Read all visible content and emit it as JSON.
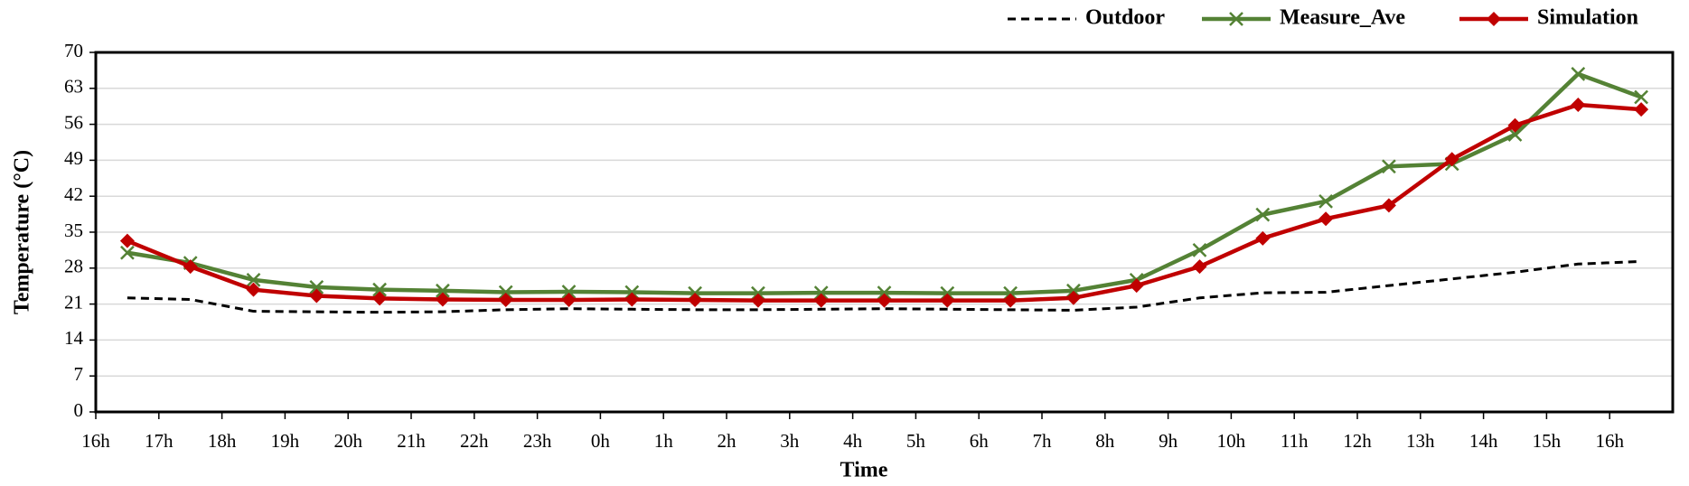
{
  "chart_data": {
    "type": "line",
    "xlabel": "Time",
    "ylabel": "Temperature (°C)",
    "x": [
      0.5,
      1.5,
      2.5,
      3.5,
      4.5,
      5.5,
      6.5,
      7.5,
      8.5,
      9.5,
      10.5,
      11.5,
      12.5,
      13.5,
      14.5,
      15.5,
      16.5,
      17.5,
      18.5,
      19.5,
      20.5,
      21.5,
      22.5,
      23.5,
      24.5
    ],
    "xlim": [
      0,
      25
    ],
    "xticks": [
      {
        "value": 0,
        "label": "16h"
      },
      {
        "value": 1,
        "label": "17h"
      },
      {
        "value": 2,
        "label": "18h"
      },
      {
        "value": 3,
        "label": "19h"
      },
      {
        "value": 4,
        "label": "20h"
      },
      {
        "value": 5,
        "label": "21h"
      },
      {
        "value": 6,
        "label": "22h"
      },
      {
        "value": 7,
        "label": "23h"
      },
      {
        "value": 8,
        "label": "0h"
      },
      {
        "value": 9,
        "label": "1h"
      },
      {
        "value": 10,
        "label": "2h"
      },
      {
        "value": 11,
        "label": "3h"
      },
      {
        "value": 12,
        "label": "4h"
      },
      {
        "value": 13,
        "label": "5h"
      },
      {
        "value": 14,
        "label": "6h"
      },
      {
        "value": 15,
        "label": "7h"
      },
      {
        "value": 16,
        "label": "8h"
      },
      {
        "value": 17,
        "label": "9h"
      },
      {
        "value": 18,
        "label": "10h"
      },
      {
        "value": 19,
        "label": "11h"
      },
      {
        "value": 20,
        "label": "12h"
      },
      {
        "value": 21,
        "label": "13h"
      },
      {
        "value": 22,
        "label": "14h"
      },
      {
        "value": 23,
        "label": "15h"
      },
      {
        "value": 24,
        "label": "16h"
      }
    ],
    "ylim": [
      0,
      70
    ],
    "yticks": [
      0,
      7,
      14,
      21,
      28,
      35,
      42,
      49,
      56,
      63,
      70
    ],
    "grid": true,
    "legend": "top-right",
    "series": [
      {
        "name": "Outdoor",
        "color": "#000000",
        "style": "dashed",
        "values": [
          22.2,
          21.9,
          19.6,
          19.5,
          19.4,
          19.5,
          19.9,
          20.1,
          20.0,
          19.9,
          19.9,
          20.0,
          20.1,
          20.0,
          19.9,
          19.8,
          20.4,
          22.2,
          23.2,
          23.3,
          24.6,
          25.9,
          27.2,
          28.8,
          29.3
        ]
      },
      {
        "name": "Measure_Ave",
        "color": "#548235",
        "marker": "x",
        "values": [
          31.0,
          29.0,
          25.7,
          24.3,
          23.8,
          23.6,
          23.3,
          23.4,
          23.3,
          23.1,
          23.1,
          23.2,
          23.2,
          23.1,
          23.1,
          23.6,
          25.7,
          31.5,
          38.4,
          41.0,
          47.8,
          48.3,
          54.0,
          65.8,
          61.3
        ]
      },
      {
        "name": "Simulation",
        "color": "#c00000",
        "marker": "diamond",
        "values": [
          33.3,
          28.3,
          23.8,
          22.6,
          22.1,
          21.9,
          21.8,
          21.8,
          21.9,
          21.8,
          21.7,
          21.7,
          21.7,
          21.7,
          21.7,
          22.2,
          24.6,
          28.3,
          33.8,
          37.6,
          40.2,
          49.2,
          55.8,
          59.8,
          58.9
        ]
      }
    ]
  }
}
